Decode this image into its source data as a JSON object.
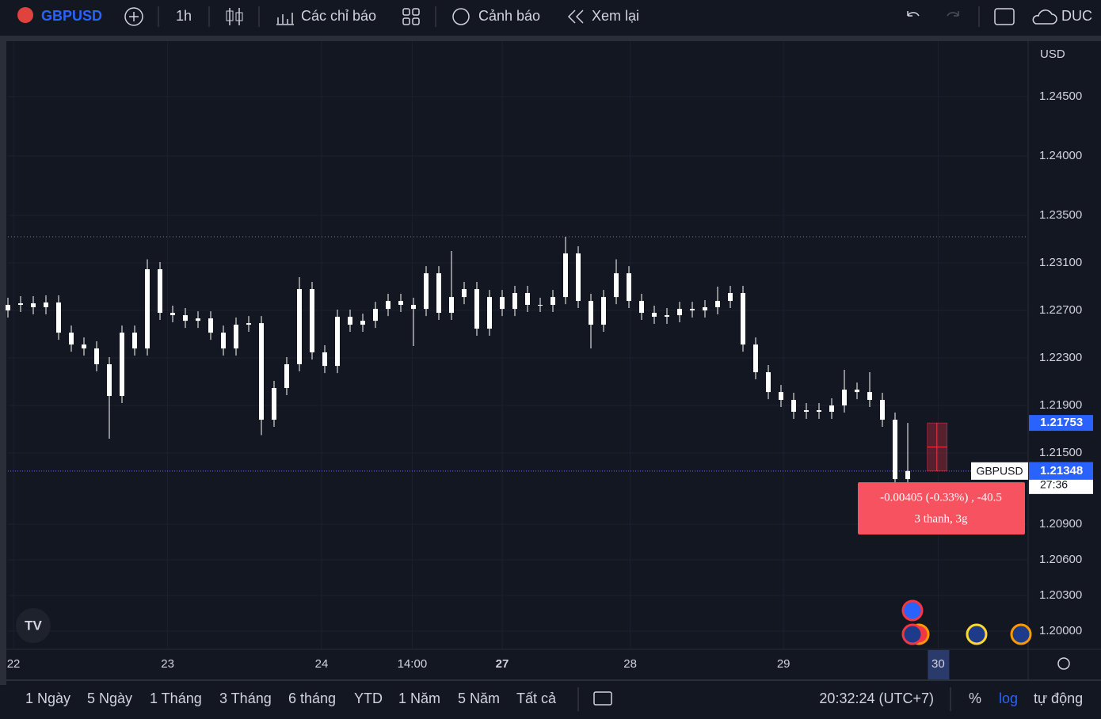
{
  "toolbar": {
    "symbol": "GBPUSD",
    "interval": "1h",
    "indicators": "Các chỉ báo",
    "alerts": "Cảnh báo",
    "replay": "Xem lại",
    "account": "DUC"
  },
  "chart_data": {
    "type": "candlestick",
    "symbol": "GBPUSD",
    "currency": "USD",
    "ylim": [
      1.19847,
      1.24967
    ],
    "yticks": [
      {
        "value": 1.2,
        "label": "1.20000"
      },
      {
        "value": 1.203,
        "label": "1.20300"
      },
      {
        "value": 1.206,
        "label": "1.20600"
      },
      {
        "value": 1.209,
        "label": "1.20900"
      },
      {
        "value": 1.215,
        "label": "1.21500"
      },
      {
        "value": 1.219,
        "label": "1.21900"
      },
      {
        "value": 1.223,
        "label": "1.22300"
      },
      {
        "value": 1.227,
        "label": "1.22700"
      },
      {
        "value": 1.231,
        "label": "1.23100"
      },
      {
        "value": 1.235,
        "label": "1.23500"
      },
      {
        "value": 1.24,
        "label": "1.24000"
      },
      {
        "value": 1.245,
        "label": "1.24500"
      }
    ],
    "xlim": [
      0,
      80.5
    ],
    "xticks": [
      {
        "value": 0.44,
        "label": "22"
      },
      {
        "value": 12.6,
        "label": "23"
      },
      {
        "value": 24.75,
        "label": "24"
      },
      {
        "value": 31.9,
        "label": "14:00"
      },
      {
        "value": 39,
        "label": "27"
      },
      {
        "value": 49.1,
        "label": "28"
      },
      {
        "value": 61.2,
        "label": "29"
      },
      {
        "value": 73.4,
        "label": "30"
      }
    ],
    "grid": true,
    "color": "#ffffff",
    "candles": [
      [
        1.227,
        1.22807,
        1.2264,
        1.22747
      ],
      [
        1.22747,
        1.2282,
        1.22687,
        1.2276
      ],
      [
        1.2276,
        1.2282,
        1.22667,
        1.22727
      ],
      [
        1.22727,
        1.22827,
        1.22667,
        1.22767
      ],
      [
        1.22767,
        1.22827,
        1.22453,
        1.22513
      ],
      [
        1.22513,
        1.22573,
        1.22353,
        1.22413
      ],
      [
        1.22413,
        1.22473,
        1.2232,
        1.2238
      ],
      [
        1.2238,
        1.2244,
        1.22187,
        1.22247
      ],
      [
        1.22247,
        1.22307,
        1.2162,
        1.2198
      ],
      [
        1.2198,
        1.22573,
        1.2192,
        1.22513
      ],
      [
        1.22513,
        1.22573,
        1.2232,
        1.2238
      ],
      [
        1.2238,
        1.2313,
        1.2232,
        1.23047
      ],
      [
        1.23047,
        1.23107,
        1.2262,
        1.2268
      ],
      [
        1.2268,
        1.2274,
        1.226,
        1.2266
      ],
      [
        1.2266,
        1.2272,
        1.22553,
        1.22613
      ],
      [
        1.22613,
        1.22693,
        1.22553,
        1.22633
      ],
      [
        1.22633,
        1.22693,
        1.22453,
        1.22513
      ],
      [
        1.22513,
        1.22573,
        1.2232,
        1.2238
      ],
      [
        1.2238,
        1.2264,
        1.2232,
        1.2258
      ],
      [
        1.2258,
        1.22653,
        1.2252,
        1.22593
      ],
      [
        1.22593,
        1.22653,
        1.2165,
        1.2178
      ],
      [
        1.2178,
        1.22107,
        1.2172,
        1.22047
      ],
      [
        1.22047,
        1.22307,
        1.21987,
        1.22247
      ],
      [
        1.22247,
        1.2298,
        1.22187,
        1.2288
      ],
      [
        1.2288,
        1.2294,
        1.22287,
        1.22347
      ],
      [
        1.22347,
        1.22407,
        1.22173,
        1.22233
      ],
      [
        1.22233,
        1.22707,
        1.22173,
        1.22647
      ],
      [
        1.22647,
        1.22707,
        1.2252,
        1.2258
      ],
      [
        1.2258,
        1.22673,
        1.2252,
        1.22613
      ],
      [
        1.22613,
        1.22773,
        1.22553,
        1.22713
      ],
      [
        1.22713,
        1.2284,
        1.22653,
        1.2278
      ],
      [
        1.2278,
        1.2284,
        1.22687,
        1.22747
      ],
      [
        1.22747,
        1.22807,
        1.224,
        1.22713
      ],
      [
        1.22713,
        1.23073,
        1.22653,
        1.23013
      ],
      [
        1.23013,
        1.23073,
        1.2262,
        1.2268
      ],
      [
        1.2268,
        1.232,
        1.2262,
        1.22813
      ],
      [
        1.22813,
        1.2294,
        1.22753,
        1.2288
      ],
      [
        1.2288,
        1.2294,
        1.22487,
        1.22547
      ],
      [
        1.22547,
        1.22873,
        1.22487,
        1.22813
      ],
      [
        1.22813,
        1.22873,
        1.22653,
        1.22713
      ],
      [
        1.22713,
        1.22907,
        1.22653,
        1.22847
      ],
      [
        1.22847,
        1.22907,
        1.22687,
        1.22747
      ],
      [
        1.22747,
        1.22807,
        1.22687,
        1.22747
      ],
      [
        1.22747,
        1.22873,
        1.22687,
        1.22813
      ],
      [
        1.22813,
        1.2332,
        1.22753,
        1.2318
      ],
      [
        1.2318,
        1.2324,
        1.2272,
        1.2278
      ],
      [
        1.2278,
        1.2284,
        1.2238,
        1.2258
      ],
      [
        1.2258,
        1.22873,
        1.2252,
        1.22813
      ],
      [
        1.22813,
        1.2313,
        1.22753,
        1.23013
      ],
      [
        1.23013,
        1.23073,
        1.2272,
        1.2278
      ],
      [
        1.2278,
        1.2284,
        1.2262,
        1.2268
      ],
      [
        1.2268,
        1.2274,
        1.22587,
        1.22647
      ],
      [
        1.22647,
        1.2272,
        1.22587,
        1.2266
      ],
      [
        1.2266,
        1.22773,
        1.226,
        1.22713
      ],
      [
        1.22713,
        1.22773,
        1.2264,
        1.227
      ],
      [
        1.227,
        1.22787,
        1.2264,
        1.22727
      ],
      [
        1.22727,
        1.229,
        1.22667,
        1.2278
      ],
      [
        1.2278,
        1.22907,
        1.2272,
        1.22847
      ],
      [
        1.22847,
        1.22907,
        1.22353,
        1.22413
      ],
      [
        1.22413,
        1.22473,
        1.2212,
        1.2218
      ],
      [
        1.2218,
        1.2224,
        1.21953,
        1.22013
      ],
      [
        1.22013,
        1.22073,
        1.21887,
        1.21947
      ],
      [
        1.21947,
        1.22007,
        1.21787,
        1.21847
      ],
      [
        1.21847,
        1.2192,
        1.21787,
        1.2186
      ],
      [
        1.2186,
        1.2192,
        1.21787,
        1.21847
      ],
      [
        1.21847,
        1.2196,
        1.21787,
        1.219
      ],
      [
        1.219,
        1.222,
        1.2184,
        1.22033
      ],
      [
        1.22033,
        1.22093,
        1.21953,
        1.22013
      ],
      [
        1.22013,
        1.2218,
        1.21887,
        1.21947
      ],
      [
        1.21947,
        1.22007,
        1.2172,
        1.2178
      ],
      [
        1.2178,
        1.2184,
        1.2122,
        1.2128
      ],
      [
        1.2128,
        1.21753,
        1.2122,
        1.21348
      ]
    ],
    "high_line": 1.2332,
    "high_label": {
      "value": 1.21753,
      "label": "1.21753"
    },
    "last_price": {
      "value": 1.21348,
      "label": "1.21348"
    },
    "countdown": "27:36",
    "measure": {
      "line1": "-0.00405 (-0.33%) , -40.5",
      "line2": "3 thanh, 3g"
    }
  },
  "bottom_bar": {
    "ranges": [
      "1 Ngày",
      "5 Ngày",
      "1 Tháng",
      "3 Tháng",
      "6 tháng",
      "YTD",
      "1 Năm",
      "5 Năm",
      "Tất cả"
    ],
    "time": "20:32:24 (UTC+7)",
    "percent": "%",
    "log": "log",
    "auto": "tự động"
  }
}
